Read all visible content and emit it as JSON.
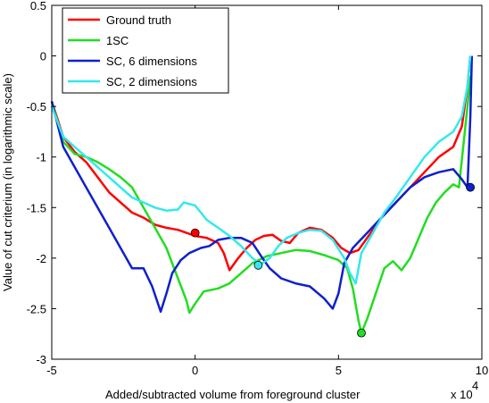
{
  "chart_data": {
    "type": "line",
    "xlabel": "Added/subtracted volume from foreground cluster",
    "x_multiplier": "x 10",
    "x_multiplier_exp": "4",
    "ylabel": "Value of cut criterium (in logarithmic scale)",
    "xlim": [
      -5,
      10
    ],
    "ylim": [
      -3,
      0.5
    ],
    "xticks": [
      -5,
      0,
      5,
      10
    ],
    "xtick_labels": [
      "-5",
      "0",
      "5",
      "10"
    ],
    "yticks": [
      0.5,
      0,
      -0.5,
      -1,
      -1.5,
      -2,
      -2.5,
      -3
    ],
    "ytick_labels": [
      "0.5",
      "0",
      "-0.5",
      "-1",
      "-1.5",
      "-2",
      "-2.5",
      "-3"
    ],
    "grid": false,
    "legend_position": "top-left",
    "series": [
      {
        "name": "Ground truth",
        "color": "#ff0000",
        "points": [
          [
            -5,
            -0.45
          ],
          [
            -4.6,
            -0.8
          ],
          [
            -4.2,
            -0.95
          ],
          [
            -3.8,
            -1.05
          ],
          [
            -3.4,
            -1.2
          ],
          [
            -3.0,
            -1.35
          ],
          [
            -2.6,
            -1.45
          ],
          [
            -2.2,
            -1.55
          ],
          [
            -1.8,
            -1.6
          ],
          [
            -1.4,
            -1.67
          ],
          [
            -1.0,
            -1.7
          ],
          [
            -0.6,
            -1.72
          ],
          [
            -0.3,
            -1.75
          ],
          [
            0.0,
            -1.78
          ],
          [
            0.4,
            -1.8
          ],
          [
            0.8,
            -1.85
          ],
          [
            1.0,
            -1.95
          ],
          [
            1.2,
            -2.12
          ],
          [
            1.5,
            -2.0
          ],
          [
            1.8,
            -1.9
          ],
          [
            2.1,
            -1.82
          ],
          [
            2.4,
            -1.78
          ],
          [
            2.7,
            -1.77
          ],
          [
            3.0,
            -1.83
          ],
          [
            3.3,
            -1.85
          ],
          [
            3.6,
            -1.75
          ],
          [
            4.0,
            -1.7
          ],
          [
            4.4,
            -1.72
          ],
          [
            4.8,
            -1.8
          ],
          [
            5.1,
            -1.9
          ],
          [
            5.4,
            -1.95
          ],
          [
            5.7,
            -1.92
          ],
          [
            6.0,
            -1.8
          ],
          [
            6.5,
            -1.6
          ],
          [
            7.0,
            -1.45
          ],
          [
            7.5,
            -1.3
          ],
          [
            8.0,
            -1.15
          ],
          [
            8.5,
            -1.0
          ],
          [
            9.0,
            -0.9
          ],
          [
            9.3,
            -0.7
          ],
          [
            9.5,
            -0.3
          ],
          [
            9.6,
            0.0
          ]
        ],
        "marker": {
          "x": 0.0,
          "y": -1.75
        }
      },
      {
        "name": "1SC",
        "color": "#22dd22",
        "points": [
          [
            -5,
            -0.45
          ],
          [
            -4.6,
            -0.85
          ],
          [
            -4.2,
            -0.97
          ],
          [
            -3.8,
            -1.0
          ],
          [
            -3.4,
            -1.05
          ],
          [
            -3.0,
            -1.12
          ],
          [
            -2.6,
            -1.2
          ],
          [
            -2.2,
            -1.3
          ],
          [
            -1.8,
            -1.5
          ],
          [
            -1.4,
            -1.7
          ],
          [
            -1.0,
            -1.9
          ],
          [
            -0.6,
            -2.2
          ],
          [
            -0.3,
            -2.42
          ],
          [
            -0.2,
            -2.54
          ],
          [
            0.0,
            -2.45
          ],
          [
            0.3,
            -2.33
          ],
          [
            0.8,
            -2.3
          ],
          [
            1.2,
            -2.25
          ],
          [
            1.6,
            -2.15
          ],
          [
            2.0,
            -2.05
          ],
          [
            2.5,
            -1.98
          ],
          [
            3.0,
            -1.95
          ],
          [
            3.5,
            -1.92
          ],
          [
            4.0,
            -1.93
          ],
          [
            4.5,
            -1.97
          ],
          [
            5.0,
            -2.02
          ],
          [
            5.3,
            -2.1
          ],
          [
            5.5,
            -2.3
          ],
          [
            5.7,
            -2.62
          ],
          [
            5.8,
            -2.74
          ],
          [
            6.0,
            -2.6
          ],
          [
            6.3,
            -2.35
          ],
          [
            6.6,
            -2.1
          ],
          [
            6.9,
            -2.03
          ],
          [
            7.2,
            -2.12
          ],
          [
            7.5,
            -2.0
          ],
          [
            7.8,
            -1.8
          ],
          [
            8.1,
            -1.6
          ],
          [
            8.4,
            -1.45
          ],
          [
            8.7,
            -1.35
          ],
          [
            9.0,
            -1.27
          ],
          [
            9.2,
            -1.3
          ],
          [
            9.35,
            -0.9
          ],
          [
            9.5,
            -0.5
          ],
          [
            9.6,
            -0.2
          ]
        ],
        "marker": {
          "x": 5.8,
          "y": -2.74
        }
      },
      {
        "name": "SC, 6 dimensions",
        "color": "#1020cc",
        "points": [
          [
            -5,
            -0.45
          ],
          [
            -4.6,
            -0.9
          ],
          [
            -4.2,
            -1.1
          ],
          [
            -3.8,
            -1.3
          ],
          [
            -3.4,
            -1.5
          ],
          [
            -3.0,
            -1.7
          ],
          [
            -2.6,
            -1.9
          ],
          [
            -2.2,
            -2.1
          ],
          [
            -1.8,
            -2.1
          ],
          [
            -1.5,
            -2.28
          ],
          [
            -1.2,
            -2.53
          ],
          [
            -1.0,
            -2.35
          ],
          [
            -0.8,
            -2.15
          ],
          [
            -0.5,
            -2.02
          ],
          [
            -0.2,
            -1.95
          ],
          [
            0.2,
            -1.9
          ],
          [
            0.5,
            -1.88
          ],
          [
            0.8,
            -1.82
          ],
          [
            1.2,
            -1.8
          ],
          [
            1.6,
            -1.8
          ],
          [
            2.0,
            -1.85
          ],
          [
            2.3,
            -1.98
          ],
          [
            2.6,
            -2.1
          ],
          [
            3.0,
            -2.2
          ],
          [
            3.5,
            -2.25
          ],
          [
            4.0,
            -2.28
          ],
          [
            4.5,
            -2.4
          ],
          [
            4.8,
            -2.5
          ],
          [
            5.0,
            -2.35
          ],
          [
            5.2,
            -2.05
          ],
          [
            5.5,
            -1.9
          ],
          [
            6.0,
            -1.75
          ],
          [
            6.5,
            -1.6
          ],
          [
            7.0,
            -1.45
          ],
          [
            7.5,
            -1.3
          ],
          [
            8.0,
            -1.2
          ],
          [
            8.5,
            -1.15
          ],
          [
            9.0,
            -1.12
          ],
          [
            9.3,
            -1.22
          ],
          [
            9.5,
            -1.3
          ],
          [
            9.6,
            -0.6
          ],
          [
            9.65,
            0.0
          ]
        ],
        "marker": {
          "x": 9.6,
          "y": -1.3
        }
      },
      {
        "name": "SC, 2 dimensions",
        "color": "#33e8ee",
        "points": [
          [
            -5,
            -0.5
          ],
          [
            -4.6,
            -0.8
          ],
          [
            -4.2,
            -0.9
          ],
          [
            -3.8,
            -1.0
          ],
          [
            -3.4,
            -1.1
          ],
          [
            -3.0,
            -1.2
          ],
          [
            -2.6,
            -1.3
          ],
          [
            -2.2,
            -1.4
          ],
          [
            -1.8,
            -1.45
          ],
          [
            -1.4,
            -1.5
          ],
          [
            -1.0,
            -1.53
          ],
          [
            -0.6,
            -1.52
          ],
          [
            -0.4,
            -1.45
          ],
          [
            0.0,
            -1.48
          ],
          [
            0.4,
            -1.62
          ],
          [
            0.8,
            -1.7
          ],
          [
            1.2,
            -1.78
          ],
          [
            1.6,
            -1.88
          ],
          [
            2.0,
            -2.0
          ],
          [
            2.3,
            -2.06
          ],
          [
            2.6,
            -2.0
          ],
          [
            2.9,
            -1.88
          ],
          [
            3.2,
            -1.8
          ],
          [
            3.6,
            -1.75
          ],
          [
            4.0,
            -1.72
          ],
          [
            4.4,
            -1.73
          ],
          [
            4.8,
            -1.82
          ],
          [
            5.2,
            -2.0
          ],
          [
            5.4,
            -2.15
          ],
          [
            5.6,
            -2.25
          ],
          [
            5.8,
            -1.95
          ],
          [
            6.2,
            -1.75
          ],
          [
            6.6,
            -1.55
          ],
          [
            7.0,
            -1.4
          ],
          [
            7.5,
            -1.2
          ],
          [
            8.0,
            -1.0
          ],
          [
            8.5,
            -0.85
          ],
          [
            9.0,
            -0.75
          ],
          [
            9.3,
            -0.6
          ],
          [
            9.5,
            -0.3
          ],
          [
            9.6,
            0.0
          ]
        ],
        "marker": {
          "x": 2.2,
          "y": -2.07
        }
      }
    ]
  }
}
